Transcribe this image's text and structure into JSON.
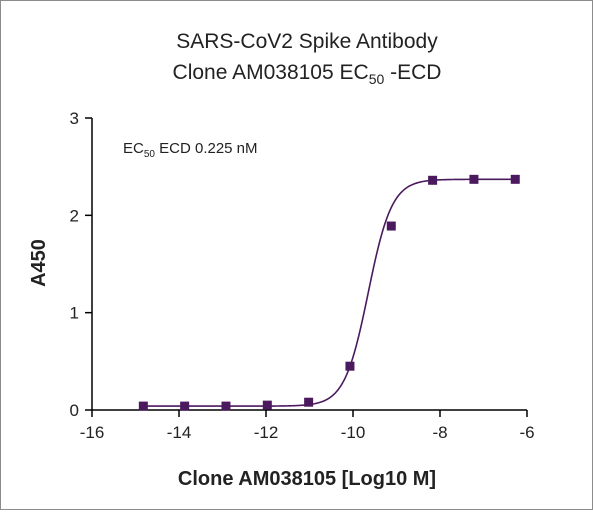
{
  "chart_data": {
    "type": "line",
    "title_line1": "SARS-CoV2 Spike Antibody",
    "title_line2_prefix": "Clone AM038105 EC",
    "title_line2_sub": "50",
    "title_line2_suffix": " -ECD",
    "xlabel": "Clone AM038105 [Log10 M]",
    "ylabel": "A450",
    "annotation_prefix": "EC",
    "annotation_sub": "50",
    "annotation_suffix": " ECD 0.225 nM",
    "xlim": [
      -16,
      -6
    ],
    "ylim": [
      0,
      3
    ],
    "xticks": [
      -16,
      -14,
      -12,
      -10,
      -8,
      -6
    ],
    "xtick_labels": [
      "-16",
      "-14",
      "-12",
      "-10",
      "-8",
      "-6"
    ],
    "yticks": [
      0,
      1,
      2,
      3
    ],
    "ytick_labels": [
      "0",
      "1",
      "2",
      "3"
    ],
    "grid": false,
    "series": [
      {
        "color": "#4b1a5e",
        "marker": "square",
        "x": [
          -14.82,
          -13.87,
          -12.92,
          -11.97,
          -11.02,
          -10.07,
          -9.12,
          -8.17,
          -7.22,
          -6.27
        ],
        "y": [
          0.04,
          0.04,
          0.04,
          0.05,
          0.08,
          0.45,
          1.89,
          2.36,
          2.37,
          2.37
        ]
      }
    ],
    "fit_curve": {
      "model": "4PL",
      "bottom": 0.04,
      "top": 2.37,
      "logEC50": -9.65,
      "hill_slope": 1.6
    }
  }
}
